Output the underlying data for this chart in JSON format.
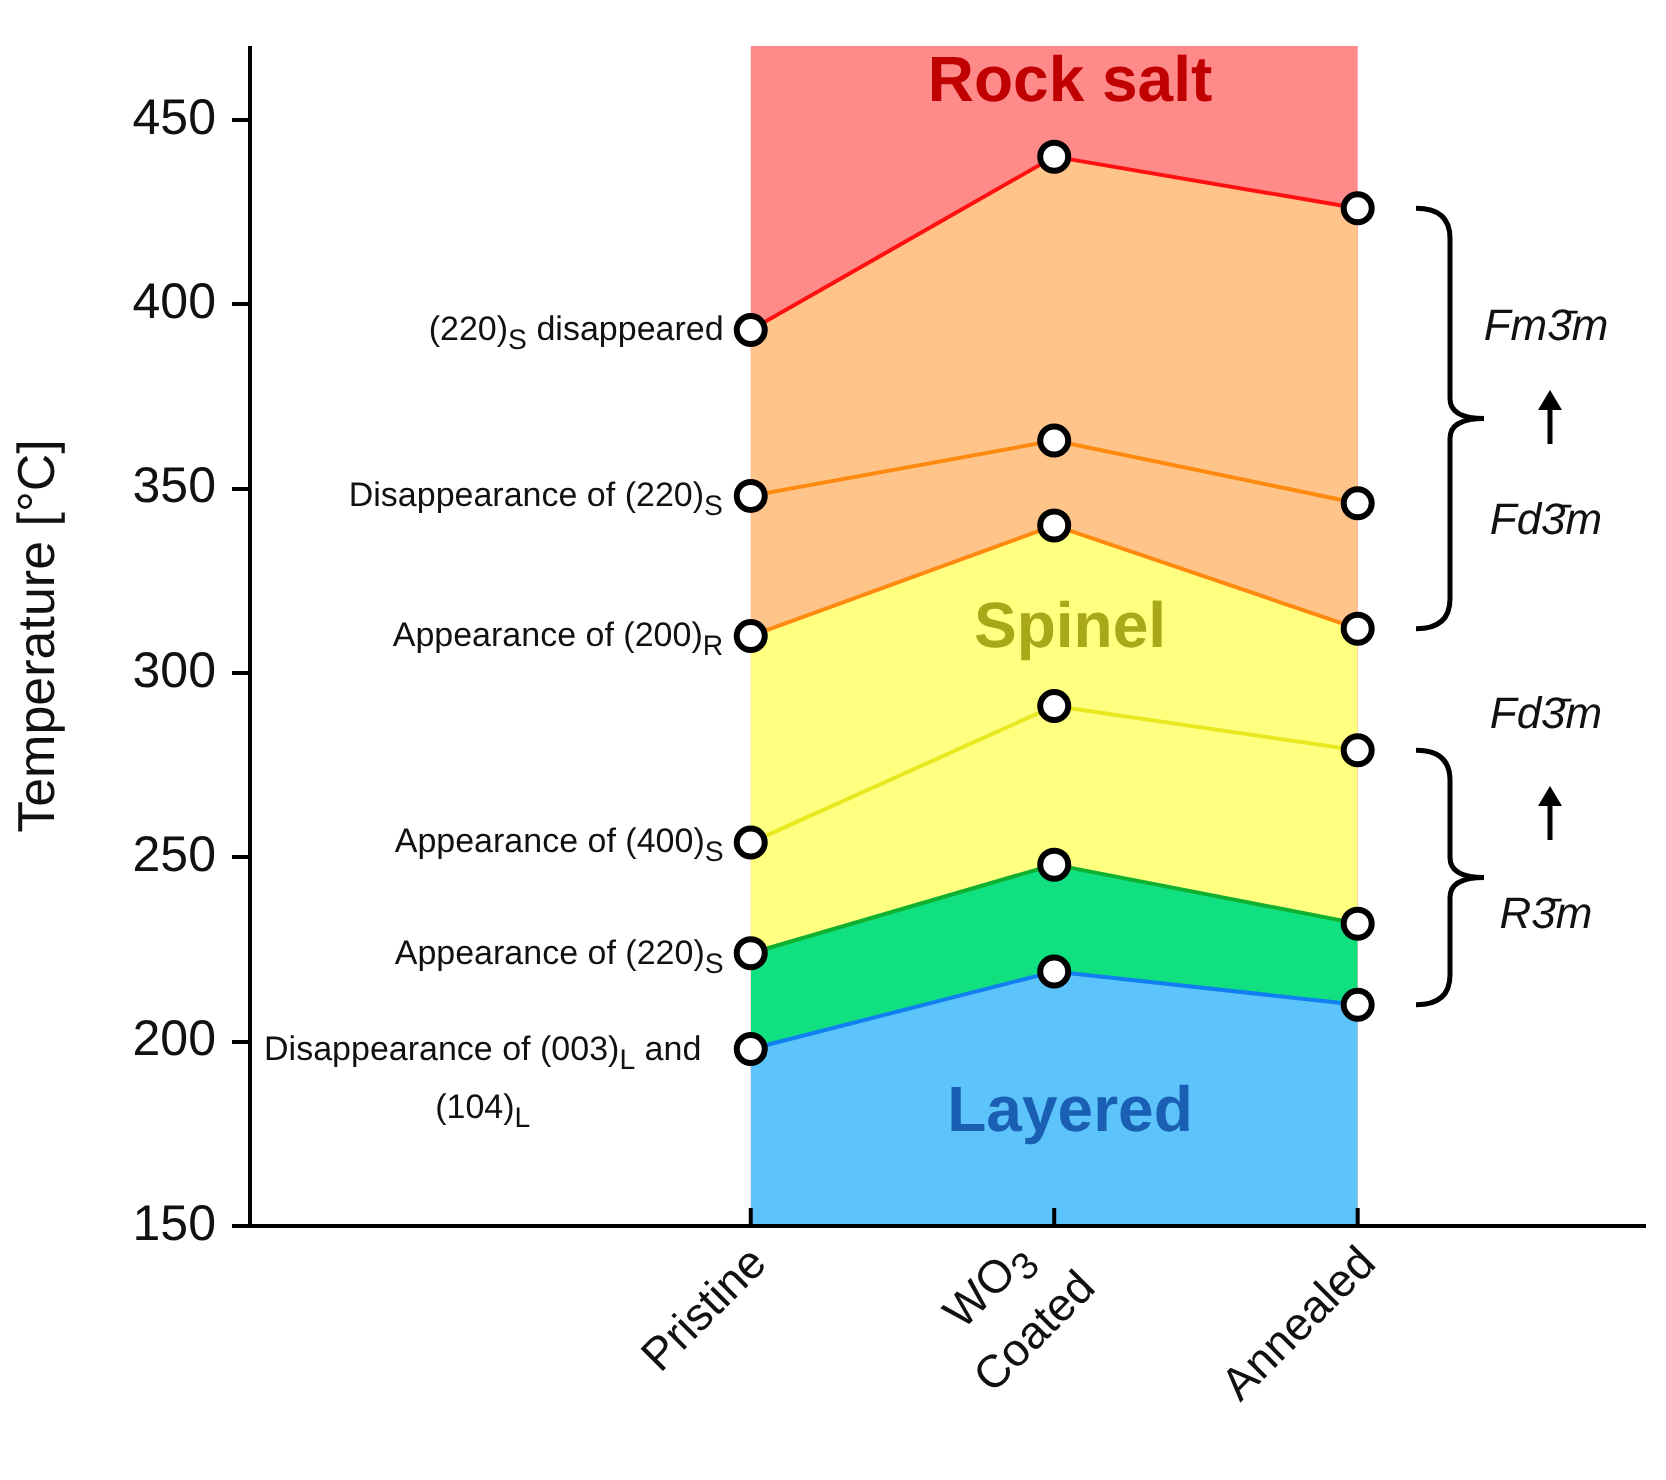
{
  "chart_data": {
    "type": "line",
    "ylabel": "Temperature [°C]",
    "categories": [
      "Pristine",
      "WO$_{3}$ Coated",
      "Annealed"
    ],
    "ylim": [
      150,
      470
    ],
    "yticks": [
      150,
      200,
      250,
      300,
      350,
      400,
      450
    ],
    "grid": false,
    "legend": false,
    "marker": "circle",
    "line_style": "solid",
    "bands": [
      {
        "axis": "x",
        "from": "Pristine",
        "to": "Annealed",
        "color": "#ff8a8a"
      }
    ],
    "series": [
      {
        "type": "area",
        "name": "(220)$_{S}$ disappeared",
        "color": "#ffc48a",
        "values": [
          393,
          440,
          426
        ]
      },
      {
        "name": "Disappearance of (220)$_{S}$",
        "color": "#ff8a10",
        "values": [
          348,
          363,
          346
        ]
      },
      {
        "type": "area",
        "name": "Appearance of (200)$_{R}$",
        "color": "#ffff80",
        "values": [
          310,
          340,
          312
        ]
      },
      {
        "name": "Appearance of (400)$_{S}$",
        "color": "#e8e820",
        "values": [
          254,
          291,
          279
        ]
      },
      {
        "type": "area",
        "name": "Appearance of (220)$_{S}$",
        "color": "#10e080",
        "values": [
          224,
          248,
          232
        ]
      },
      {
        "type": "area",
        "name": "Disappearance of (003)$_{L}$ and (104)$_{L}$",
        "color": "#5cc4fa",
        "values": [
          198,
          219,
          210
        ]
      }
    ],
    "annotations": [
      "Rock salt",
      "Spinel",
      "Layered",
      "Fm3̄m",
      "Fd3̄m",
      "Fd3̄m",
      "R3̄m"
    ]
  }
}
